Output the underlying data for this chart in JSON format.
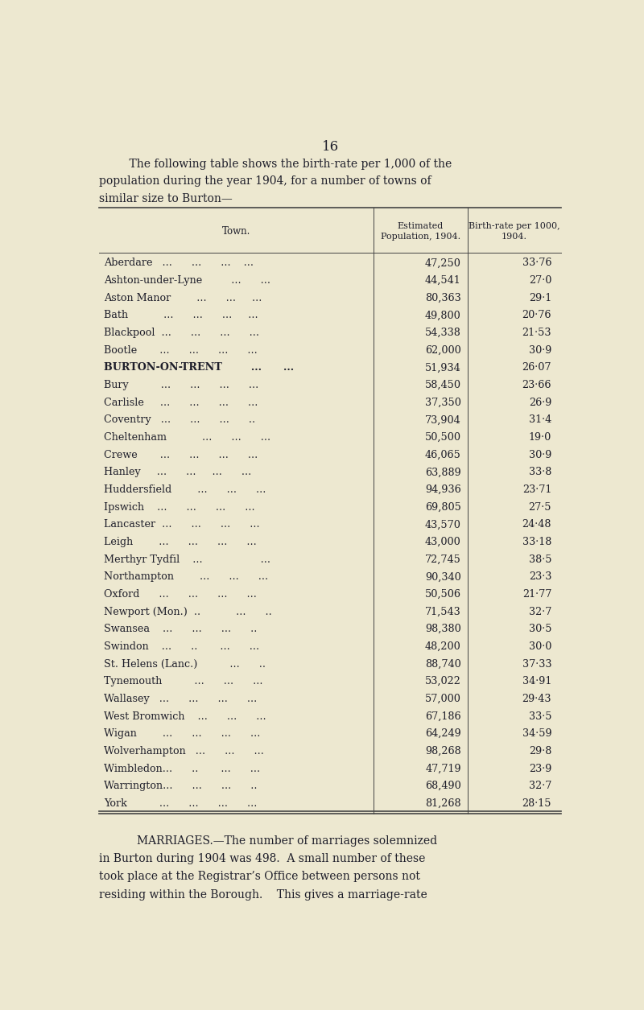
{
  "page_number": "16",
  "intro_text_line1": "    The following table shows the birth-rate per 1,000 of the",
  "intro_text_line2": "population during the year 1904, for a number of towns of",
  "intro_text_line3": "similar size to Burton—",
  "col_header_town": "Town.",
  "col_header_pop": "Estimated\nPopulation, 1904.",
  "col_header_birth": "Birth-rate per 1000,\n1904.",
  "rows": [
    [
      "Aberdare   ...      ...      ...    ...",
      "47,250",
      "33·76"
    ],
    [
      "Ashton-under-Lyne         ...      ...",
      "44,541",
      "27·0"
    ],
    [
      "Aston Manor        ...      ...     ...",
      "80,363",
      "29·1"
    ],
    [
      "Bath           ...      ...      ...     ...",
      "49,800",
      "20·76"
    ],
    [
      "Blackpool  ...      ...      ...      ...",
      "54,338",
      "21·53"
    ],
    [
      "Bootle       ...      ...      ...      ...",
      "62,000",
      "30·9"
    ],
    [
      "BURTON-ON-TRENT        ...      ...",
      "51,934",
      "26·07"
    ],
    [
      "Bury          ...      ...      ...      ...",
      "58,450",
      "23·66"
    ],
    [
      "Carlisle     ...      ...      ...      ...",
      "37,350",
      "26·9"
    ],
    [
      "Coventry   ...      ...      ...      ..",
      "73,904",
      "31·4"
    ],
    [
      "Cheltenham           ...      ...      ...",
      "50,500",
      "19·0"
    ],
    [
      "Crewe       ...      ...      ...      ...",
      "46,065",
      "30·9"
    ],
    [
      "Hanley     ...      ...     ...      ...",
      "63,889",
      "33·8"
    ],
    [
      "Huddersfield        ...      ...      ...",
      "94,936",
      "23·71"
    ],
    [
      "Ipswich    ...      ...      ...      ...",
      "69,805",
      "27·5"
    ],
    [
      "Lancaster  ...      ...      ...      ...",
      "43,570",
      "24·48"
    ],
    [
      "Leigh        ...      ...      ...      ...",
      "43,000",
      "33·18"
    ],
    [
      "Merthyr Tydfil    ...                  ...",
      "72,745",
      "38·5"
    ],
    [
      "Northampton        ...      ...      ...",
      "90,340",
      "23·3"
    ],
    [
      "Oxford      ...      ...      ...      ...",
      "50,506",
      "21·77"
    ],
    [
      "Newport (Mon.)  ..           ...      ..",
      "71,543",
      "32·7"
    ],
    [
      "Swansea    ...      ...      ...      ..",
      "98,380",
      "30·5"
    ],
    [
      "Swindon    ...      ..       ...      ...",
      "48,200",
      "30·0"
    ],
    [
      "St. Helens (Lanc.)          ...      ..",
      "88,740",
      "37·33"
    ],
    [
      "Tynemouth          ...      ...      ...",
      "53,022",
      "34·91"
    ],
    [
      "Wallasey   ...      ...      ...      ...",
      "57,000",
      "29·43"
    ],
    [
      "West Bromwich    ...      ...      ...",
      "67,186",
      "33·5"
    ],
    [
      "Wigan        ...      ...      ...      ...",
      "64,249",
      "34·59"
    ],
    [
      "Wolverhampton   ...      ...      ...",
      "98,268",
      "29·8"
    ],
    [
      "Wimbledon...      ..       ...      ...",
      "47,719",
      "23·9"
    ],
    [
      "Warrington...      ...      ...      ..",
      "68,490",
      "32·7"
    ],
    [
      "York          ...      ...      ...      ...",
      "81,268",
      "28·15"
    ]
  ],
  "footer_para": "MARRIAGES.—The number of marriages solemnized\nin Burton during 1904 was 498.  A small number of these\ntook place at the Registrar’s Office between persons not\nresiding within the Borough.    This gives a marriage-rate",
  "bg_color": "#ede8d0",
  "text_color": "#1e1e2a",
  "line_color": "#444444"
}
